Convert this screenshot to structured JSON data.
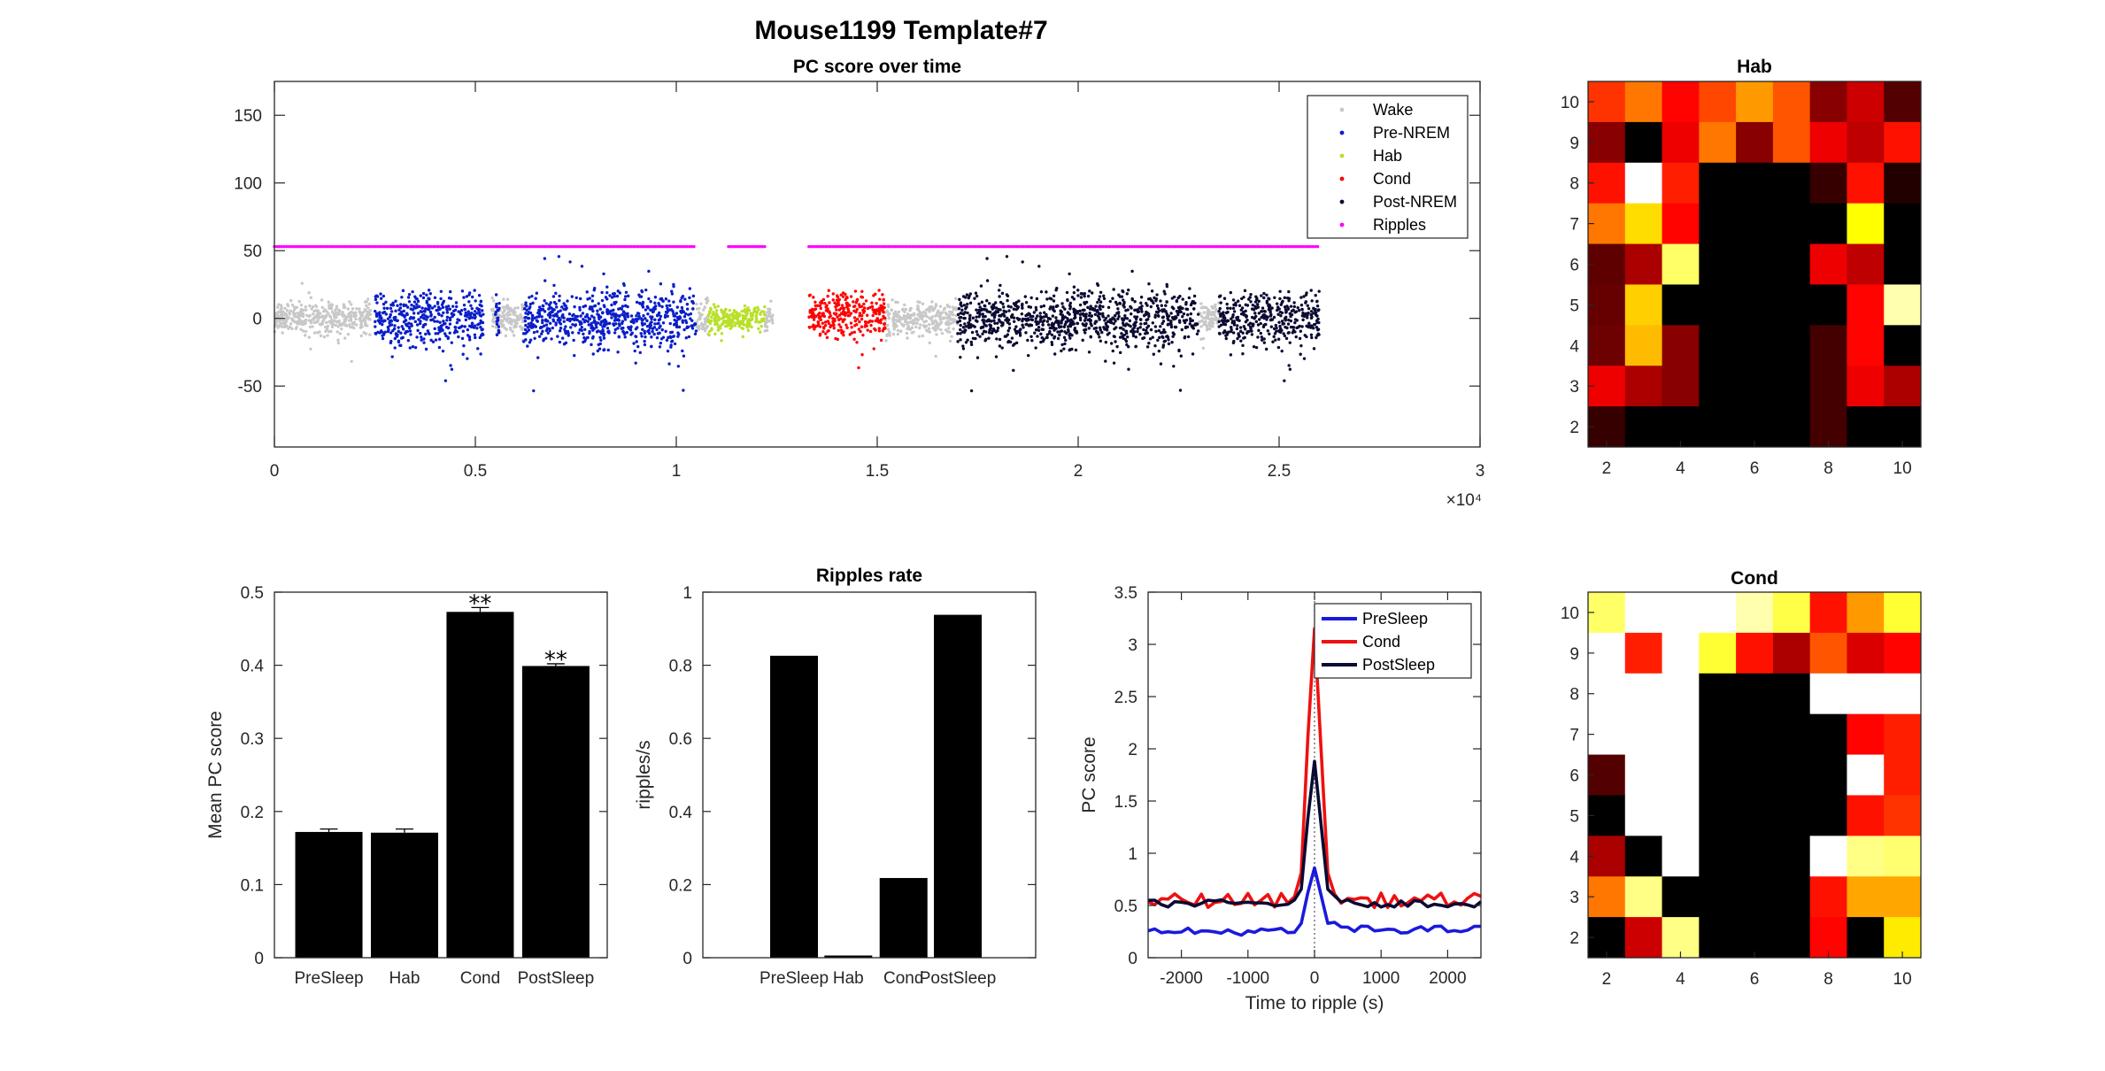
{
  "figure_title": "Mouse1199 Template#7",
  "chart_data": [
    {
      "type": "scatter",
      "title": "PC score over time",
      "xlabel": "",
      "ylabel": "",
      "x_exponent_label": "×10⁴",
      "xlim": [
        0,
        3
      ],
      "ylim": [
        -95,
        175
      ],
      "xticks": [
        "0",
        "0.5",
        "1",
        "1.5",
        "2",
        "2.5",
        "3"
      ],
      "yticks": [
        "-50",
        "0",
        "50",
        "100",
        "150"
      ],
      "legend_position": "top-right",
      "series": [
        {
          "name": "Wake",
          "color": "#c8c8c8",
          "x_ranges": [
            [
              0,
              0.24
            ],
            [
              0.54,
              0.62
            ],
            [
              1.05,
              1.08
            ],
            [
              1.22,
              1.24
            ],
            [
              1.52,
              1.7
            ],
            [
              2.3,
              2.35
            ]
          ],
          "center": 0,
          "spread": 8
        },
        {
          "name": "Pre-NREM",
          "color": "#0a1ec8",
          "x_ranges": [
            [
              0.25,
              0.52
            ],
            [
              0.55,
              0.56
            ],
            [
              0.62,
              1.05
            ]
          ],
          "center": 0,
          "spread": 14
        },
        {
          "name": "Hab",
          "color": "#b9e02a",
          "x_ranges": [
            [
              1.08,
              1.22
            ]
          ],
          "center": 0,
          "spread": 6
        },
        {
          "name": "Cond",
          "color": "#ff0000",
          "x_ranges": [
            [
              1.33,
              1.52
            ]
          ],
          "center": 3,
          "spread": 12
        },
        {
          "name": "Post-NREM",
          "color": "#0a0a32",
          "x_ranges": [
            [
              1.7,
              2.3
            ],
            [
              2.35,
              2.6
            ]
          ],
          "center": 0,
          "spread": 14
        },
        {
          "name": "Ripples",
          "color": "#ff00ff",
          "y_value": 53,
          "x_ranges": [
            [
              0.0,
              1.05
            ],
            [
              1.13,
              1.22
            ],
            [
              1.33,
              2.6
            ]
          ]
        }
      ]
    },
    {
      "type": "heatmap",
      "title": "Hab",
      "colormap": "hot",
      "x_range": [
        1.5,
        10.5
      ],
      "y_range": [
        1.5,
        10.5
      ],
      "xticks": [
        "2",
        "4",
        "6",
        "8",
        "10"
      ],
      "yticks": [
        "2",
        "3",
        "4",
        "5",
        "6",
        "7",
        "8",
        "9",
        "10"
      ],
      "rows_top_to_bottom": [
        [
          0.45,
          0.55,
          0.38,
          0.48,
          0.6,
          0.5,
          0.2,
          0.3,
          0.12
        ],
        [
          0.2,
          0.0,
          0.35,
          0.55,
          0.2,
          0.5,
          0.35,
          0.28,
          0.4
        ],
        [
          0.4,
          1.0,
          0.42,
          0.0,
          0.0,
          0.0,
          0.08,
          0.4,
          0.05
        ],
        [
          0.55,
          0.7,
          0.38,
          0.0,
          0.0,
          0.0,
          0.0,
          0.75,
          0.0
        ],
        [
          0.14,
          0.25,
          0.85,
          0.0,
          0.0,
          0.0,
          0.35,
          0.28,
          0.0
        ],
        [
          0.15,
          0.68,
          0.0,
          0.0,
          0.0,
          0.0,
          0.0,
          0.38,
          0.92
        ],
        [
          0.16,
          0.65,
          0.2,
          0.0,
          0.0,
          0.0,
          0.1,
          0.38,
          0.0
        ],
        [
          0.35,
          0.25,
          0.2,
          0.0,
          0.0,
          0.0,
          0.1,
          0.35,
          0.25
        ],
        [
          0.08,
          0.0,
          0.0,
          0.0,
          0.0,
          0.0,
          0.1,
          0.0,
          0.0
        ]
      ]
    },
    {
      "type": "bar",
      "title": "",
      "xlabel": "",
      "ylabel": "Mean PC score",
      "ylim": [
        0,
        0.5
      ],
      "yticks": [
        "0",
        "0.1",
        "0.2",
        "0.3",
        "0.4",
        "0.5"
      ],
      "categories": [
        "PreSleep",
        "Hab",
        "Cond",
        "PostSleep"
      ],
      "values": [
        0.172,
        0.171,
        0.473,
        0.399
      ],
      "errors": [
        0.004,
        0.005,
        0.006,
        0.003
      ],
      "annotations": [
        "",
        "",
        "**",
        "**"
      ],
      "color": "#000000"
    },
    {
      "type": "bar",
      "title": "Ripples rate",
      "xlabel": "",
      "ylabel": "ripples/s",
      "ylim": [
        0,
        1
      ],
      "yticks": [
        "0",
        "0.2",
        "0.4",
        "0.6",
        "0.8",
        "1"
      ],
      "categories": [
        "PreSleep",
        "Hab",
        "Cond",
        "PostSleep"
      ],
      "values": [
        0.826,
        0.006,
        0.218,
        0.938
      ],
      "color": "#000000"
    },
    {
      "type": "line",
      "title": "",
      "xlabel": "Time to ripple (s)",
      "ylabel": "PC score",
      "xlim": [
        -2500,
        2500
      ],
      "ylim": [
        0,
        3.5
      ],
      "xticks": [
        "-2000",
        "-1000",
        "0",
        "1000",
        "2000"
      ],
      "yticks": [
        "0",
        "0.5",
        "1",
        "1.5",
        "2",
        "2.5",
        "3",
        "3.5"
      ],
      "legend_position": "top-right",
      "series": [
        {
          "name": "PreSleep",
          "color": "#1a1adc",
          "base": 0.27,
          "peak": 0.86
        },
        {
          "name": "Cond",
          "color": "#ee1111",
          "base": 0.55,
          "peak": 3.15
        },
        {
          "name": "PostSleep",
          "color": "#0a0a32",
          "base": 0.52,
          "peak": 1.88
        }
      ]
    },
    {
      "type": "heatmap",
      "title": "Cond",
      "colormap": "hot",
      "x_range": [
        1.5,
        10.5
      ],
      "y_range": [
        1.5,
        10.5
      ],
      "xticks": [
        "2",
        "4",
        "6",
        "8",
        "10"
      ],
      "yticks": [
        "2",
        "3",
        "4",
        "5",
        "6",
        "7",
        "8",
        "9",
        "10"
      ],
      "rows_top_to_bottom": [
        [
          0.85,
          1.0,
          1.0,
          1.0,
          0.92,
          0.82,
          0.4,
          0.6,
          0.8
        ],
        [
          1.0,
          0.42,
          1.0,
          0.8,
          0.4,
          0.25,
          0.5,
          0.32,
          0.38
        ],
        [
          1.0,
          1.0,
          1.0,
          0.0,
          0.0,
          0.0,
          1.0,
          1.0,
          1.0
        ],
        [
          1.0,
          1.0,
          1.0,
          0.0,
          0.0,
          0.0,
          0.0,
          0.38,
          0.42
        ],
        [
          0.12,
          1.0,
          1.0,
          0.0,
          0.0,
          0.0,
          0.0,
          1.0,
          0.42
        ],
        [
          0.0,
          1.0,
          1.0,
          0.0,
          0.0,
          0.0,
          0.0,
          0.4,
          0.45
        ],
        [
          0.25,
          0.0,
          1.0,
          0.0,
          0.0,
          0.0,
          1.0,
          0.88,
          0.86
        ],
        [
          0.55,
          0.88,
          0.0,
          0.0,
          0.0,
          0.0,
          0.4,
          0.62,
          0.62
        ],
        [
          0.0,
          0.3,
          0.88,
          0.0,
          0.0,
          0.0,
          0.38,
          0.0,
          0.72
        ]
      ]
    }
  ]
}
